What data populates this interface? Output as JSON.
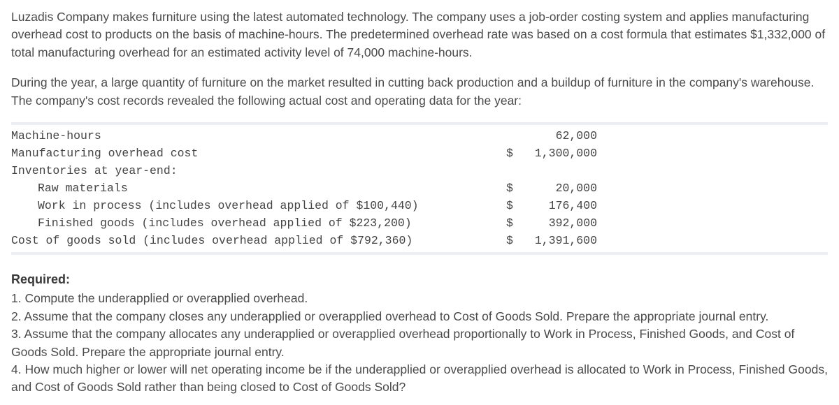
{
  "intro1": "Luzadis Company makes furniture using the latest automated technology. The company uses a job-order costing system and applies manufacturing overhead cost to products on the basis of machine-hours. The predetermined overhead rate was based on a cost formula that estimates $1,332,000 of total manufacturing overhead for an estimated activity level of 74,000 machine-hours.",
  "intro2": "During the year, a large quantity of furniture on the market resulted in cutting back production and a buildup of furniture in the company's warehouse. The company's cost records revealed the following actual cost and operating data for the year:",
  "rows": [
    {
      "label": "Machine-hours",
      "indent": false,
      "cur": "",
      "val": "62,000"
    },
    {
      "label": "Manufacturing overhead cost",
      "indent": false,
      "cur": "$",
      "val": "1,300,000"
    },
    {
      "label": "Inventories at year-end:",
      "indent": false,
      "cur": "",
      "val": ""
    },
    {
      "label": "Raw materials",
      "indent": true,
      "cur": "$",
      "val": "20,000"
    },
    {
      "label": "Work in process (includes overhead applied of $100,440)",
      "indent": true,
      "cur": "$",
      "val": "176,400"
    },
    {
      "label": "Finished goods (includes overhead applied of $223,200)",
      "indent": true,
      "cur": "$",
      "val": "392,000"
    },
    {
      "label": "Cost of goods sold (includes overhead applied of $792,360)",
      "indent": false,
      "cur": "$",
      "val": "1,391,600"
    }
  ],
  "required_heading": "Required:",
  "req1": "1. Compute the underapplied or overapplied overhead.",
  "req2": "2. Assume that the company closes any underapplied or overapplied overhead to Cost of Goods Sold. Prepare the appropriate journal entry.",
  "req3": "3. Assume that the company allocates any underapplied or overapplied overhead proportionally to Work in Process, Finished Goods, and Cost of Goods Sold. Prepare the appropriate journal entry.",
  "req4": "4. How much higher or lower will net operating income be if the underapplied or overapplied overhead is allocated to Work in Process, Finished Goods, and Cost of Goods Sold rather than being closed to Cost of Goods Sold?"
}
